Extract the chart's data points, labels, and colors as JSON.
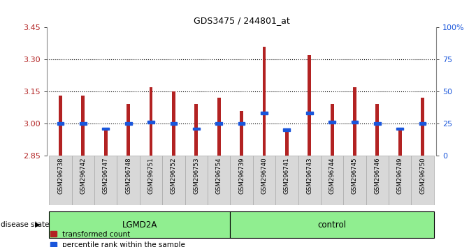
{
  "title": "GDS3475 / 244801_at",
  "samples": [
    "GSM296738",
    "GSM296742",
    "GSM296747",
    "GSM296748",
    "GSM296751",
    "GSM296752",
    "GSM296753",
    "GSM296754",
    "GSM296739",
    "GSM296740",
    "GSM296741",
    "GSM296743",
    "GSM296744",
    "GSM296745",
    "GSM296746",
    "GSM296749",
    "GSM296750"
  ],
  "transformed_counts": [
    3.13,
    3.13,
    2.97,
    3.09,
    3.17,
    3.15,
    3.09,
    3.12,
    3.06,
    3.36,
    2.97,
    3.32,
    3.09,
    3.17,
    3.09,
    2.97,
    3.12
  ],
  "percentile_ranks": [
    25,
    25,
    21,
    25,
    26,
    25,
    21,
    25,
    25,
    33,
    20,
    33,
    26,
    26,
    25,
    21,
    25
  ],
  "groups": [
    "LGMD2A",
    "LGMD2A",
    "LGMD2A",
    "LGMD2A",
    "LGMD2A",
    "LGMD2A",
    "LGMD2A",
    "LGMD2A",
    "control",
    "control",
    "control",
    "control",
    "control",
    "control",
    "control",
    "control",
    "control"
  ],
  "ylim_left": [
    2.85,
    3.45
  ],
  "ylim_right": [
    0,
    100
  ],
  "yticks_left": [
    2.85,
    3.0,
    3.15,
    3.3,
    3.45
  ],
  "yticks_right": [
    0,
    25,
    50,
    75,
    100
  ],
  "ytick_labels_right": [
    "0",
    "25",
    "50",
    "75",
    "100%"
  ],
  "hlines": [
    3.0,
    3.15,
    3.3
  ],
  "bar_color": "#b22222",
  "percentile_color": "#1a56db",
  "bar_width": 0.15,
  "group_label": "disease state",
  "legend_labels": [
    "transformed count",
    "percentile rank within the sample"
  ],
  "legend_colors": [
    "#b22222",
    "#1a56db"
  ],
  "tick_color_left": "#b22222",
  "tick_color_right": "#1a56db",
  "cell_bg_color": "#d8d8d8",
  "cell_border_color": "#aaaaaa",
  "group_fill": "#90ee90",
  "group_border": "#000000"
}
